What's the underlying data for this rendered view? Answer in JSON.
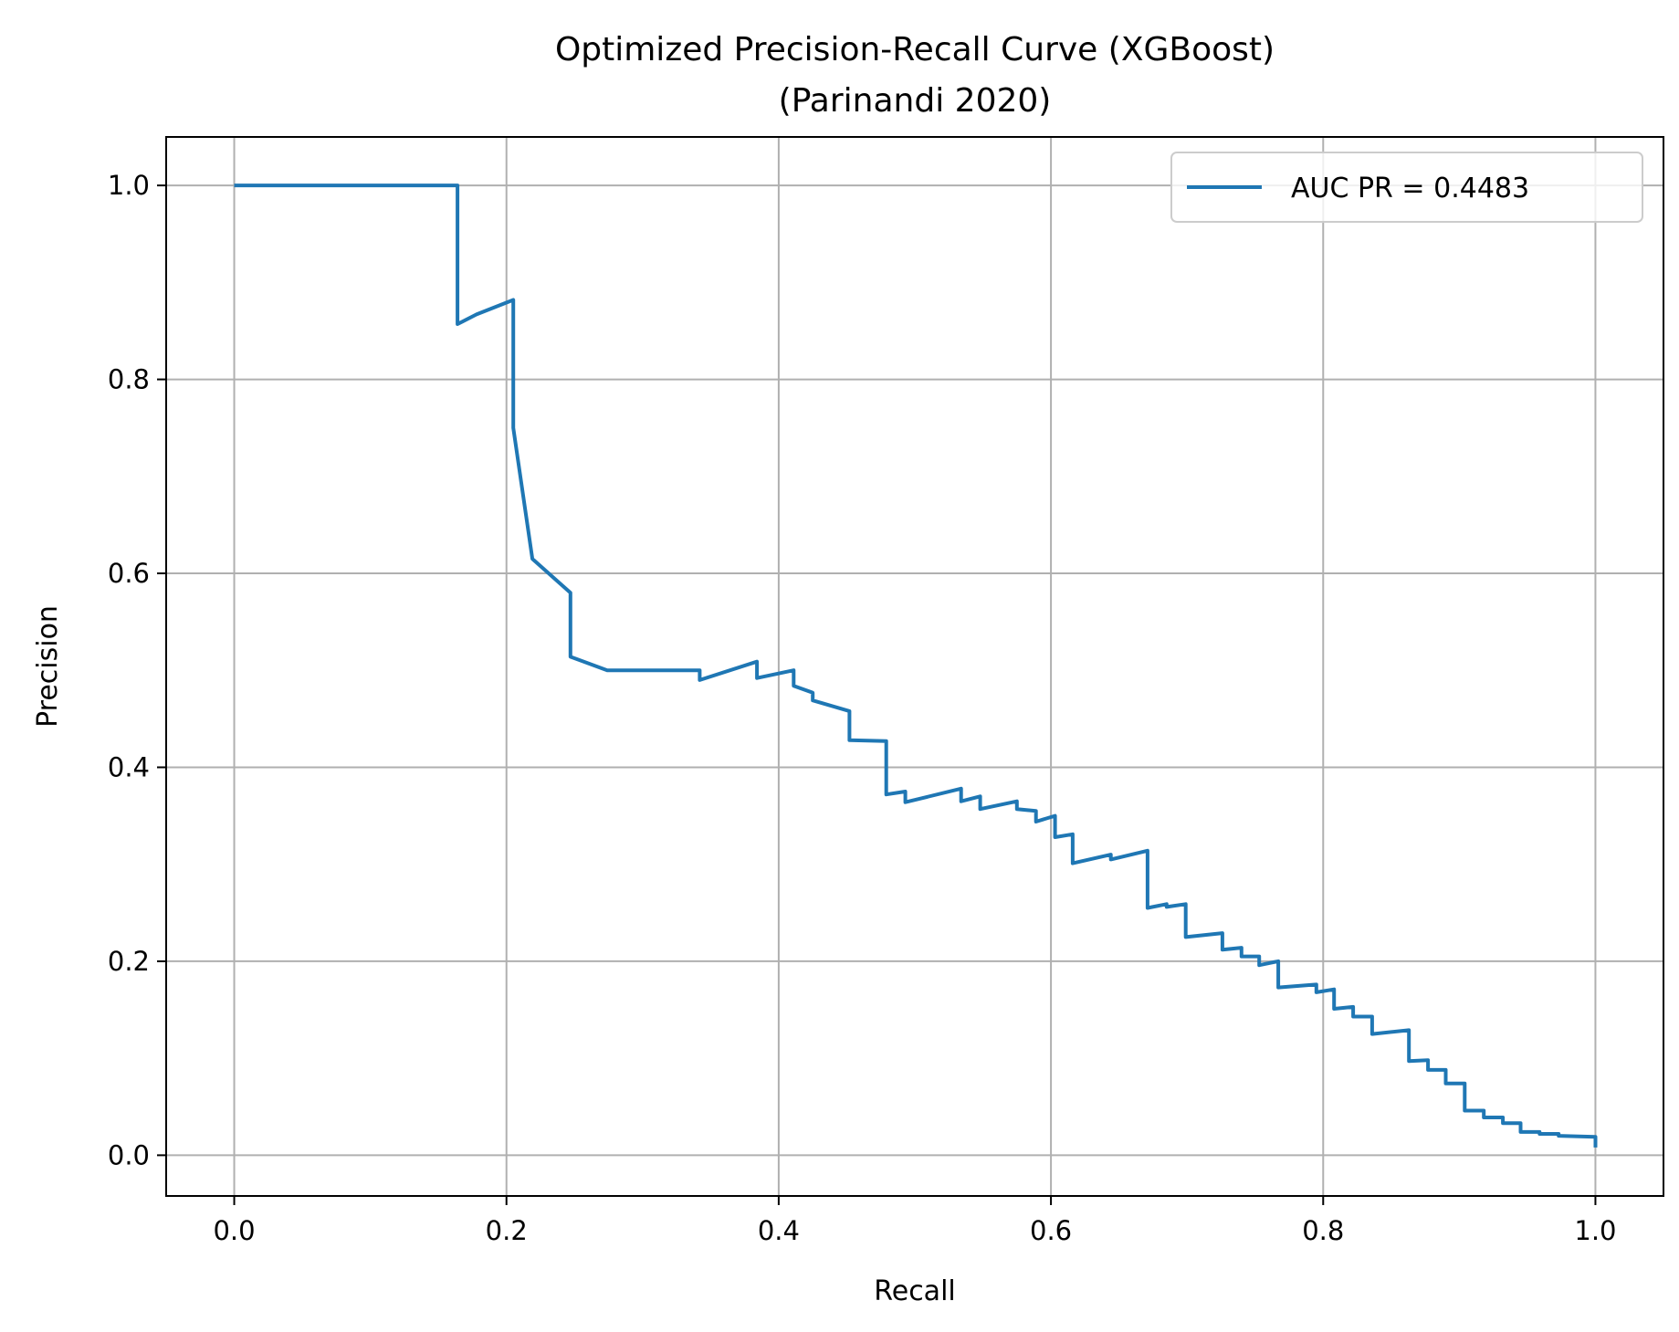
{
  "chart_data": {
    "type": "line",
    "title": "Optimized Precision-Recall Curve (XGBoost)",
    "subtitle": "(Parinandi 2020)",
    "xlabel": "Recall",
    "ylabel": "Precision",
    "xlim": [
      -0.05,
      1.05
    ],
    "ylim": [
      -0.042,
      1.05
    ],
    "xticks": [
      "0.0",
      "0.2",
      "0.4",
      "0.6",
      "0.8",
      "1.0"
    ],
    "yticks": [
      "0.0",
      "0.2",
      "0.4",
      "0.6",
      "0.8",
      "1.0"
    ],
    "grid": true,
    "legend_position": "top-right",
    "series": [
      {
        "name": "AUC PR = 0.4483",
        "color": "#1f77b4",
        "x": [
          0.0,
          0.164,
          0.164,
          0.178,
          0.205,
          0.205,
          0.219,
          0.247,
          0.247,
          0.274,
          0.342,
          0.342,
          0.384,
          0.384,
          0.411,
          0.411,
          0.425,
          0.425,
          0.452,
          0.452,
          0.479,
          0.479,
          0.493,
          0.493,
          0.534,
          0.534,
          0.548,
          0.548,
          0.575,
          0.575,
          0.589,
          0.589,
          0.603,
          0.603,
          0.616,
          0.616,
          0.644,
          0.644,
          0.671,
          0.671,
          0.685,
          0.685,
          0.699,
          0.699,
          0.726,
          0.726,
          0.74,
          0.74,
          0.753,
          0.753,
          0.767,
          0.767,
          0.795,
          0.795,
          0.808,
          0.808,
          0.822,
          0.822,
          0.836,
          0.836,
          0.863,
          0.863,
          0.877,
          0.877,
          0.89,
          0.89,
          0.904,
          0.904,
          0.918,
          0.918,
          0.932,
          0.932,
          0.945,
          0.945,
          0.959,
          0.959,
          0.973,
          0.973,
          1.0,
          1.0
        ],
        "y": [
          1.0,
          1.0,
          0.857,
          0.867,
          0.882,
          0.75,
          0.615,
          0.58,
          0.514,
          0.5,
          0.5,
          0.49,
          0.509,
          0.492,
          0.5,
          0.484,
          0.477,
          0.469,
          0.458,
          0.428,
          0.427,
          0.372,
          0.375,
          0.364,
          0.378,
          0.365,
          0.37,
          0.357,
          0.365,
          0.357,
          0.355,
          0.344,
          0.35,
          0.328,
          0.331,
          0.301,
          0.31,
          0.305,
          0.314,
          0.255,
          0.259,
          0.256,
          0.259,
          0.225,
          0.229,
          0.212,
          0.214,
          0.205,
          0.205,
          0.196,
          0.2,
          0.173,
          0.176,
          0.168,
          0.171,
          0.151,
          0.153,
          0.143,
          0.143,
          0.125,
          0.129,
          0.097,
          0.098,
          0.088,
          0.088,
          0.074,
          0.074,
          0.046,
          0.046,
          0.039,
          0.039,
          0.033,
          0.033,
          0.024,
          0.024,
          0.022,
          0.022,
          0.02,
          0.019,
          0.008
        ]
      }
    ]
  }
}
